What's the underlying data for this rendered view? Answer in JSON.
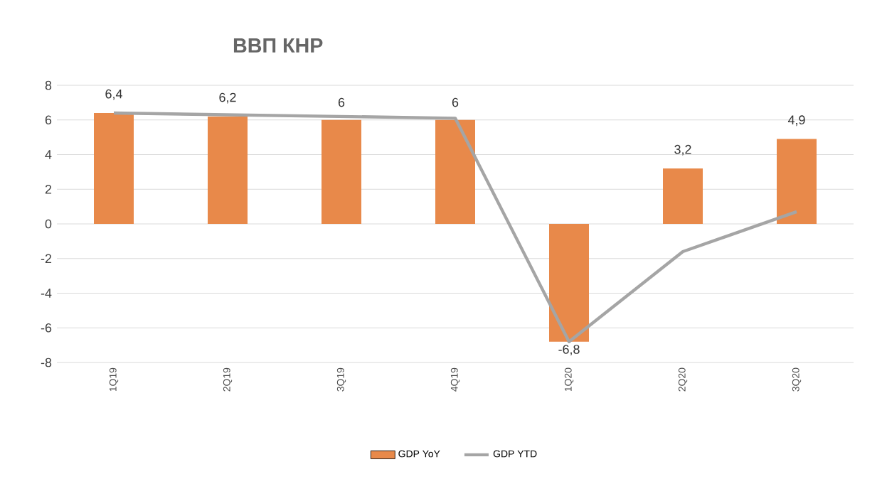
{
  "chart_data": {
    "type": "bar",
    "title": "ВВП КНР",
    "categories": [
      "1Q19",
      "2Q19",
      "3Q19",
      "4Q19",
      "1Q20",
      "2Q20",
      "3Q20"
    ],
    "series": [
      {
        "name": "GDP YoY",
        "color": "#e8894a",
        "values": [
          6.4,
          6.2,
          6,
          6,
          -6.8,
          3.2,
          4.9
        ],
        "value_labels": [
          "6,4",
          "6,2",
          "6",
          "6",
          "-6,8",
          "3,2",
          "4,9"
        ]
      },
      {
        "name": "GDP YTD",
        "type": "line",
        "color": "#a5a5a5",
        "values": [
          6.4,
          6.3,
          6.2,
          6.1,
          -6.8,
          -1.6,
          0.7
        ]
      }
    ],
    "ylim": [
      -8,
      8
    ],
    "yticks": [
      -8,
      -6,
      -4,
      -2,
      0,
      2,
      4,
      6,
      8
    ],
    "grid": "y",
    "legend": "bottom"
  }
}
